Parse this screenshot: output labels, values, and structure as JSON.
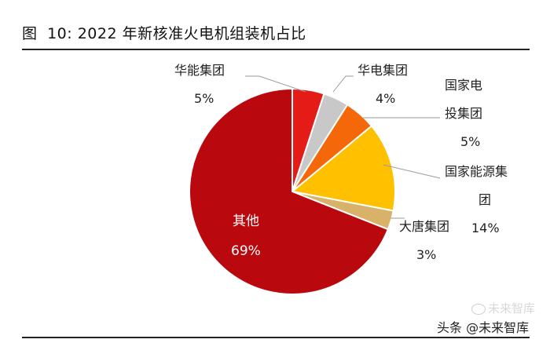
{
  "figure": {
    "title_prefix": "图",
    "title_number": "10:",
    "title_text": "2022 年新核准火电机组装机占比"
  },
  "chart_data": {
    "type": "pie",
    "title": "2022 年新核准火电机组装机占比",
    "slices": [
      {
        "name": "华能集团",
        "value": 5,
        "label": "5%",
        "color": "#e41b17"
      },
      {
        "name": "华电集团",
        "value": 4,
        "label": "4%",
        "color": "#c8c8c8"
      },
      {
        "name": "国家电投集团",
        "value": 5,
        "label": "5%",
        "color": "#f5680a"
      },
      {
        "name": "国家能源集团",
        "value": 14,
        "label": "14%",
        "color": "#ffc000"
      },
      {
        "name": "大唐集团",
        "value": 3,
        "label": "3%",
        "color": "#d9b26a"
      },
      {
        "name": "其他",
        "value": 69,
        "label": "69%",
        "color": "#b9090f"
      }
    ],
    "start_angle_deg": 0,
    "direction": "clockwise"
  },
  "labels": {
    "huaneng_name": "华能集团",
    "huaneng_pct": "5%",
    "huadian_name": "华电集团",
    "huadian_pct": "4%",
    "spic_name_1": "国家电",
    "spic_name_2": "投集团",
    "spic_pct": "5%",
    "chn_energy_name_1": "国家能源集",
    "chn_energy_name_2": "团",
    "chn_energy_pct": "14%",
    "datang_name": "大唐集团",
    "datang_pct": "3%",
    "other_name": "其他",
    "other_pct": "69%"
  },
  "watermark": {
    "logo_text": "未来智库",
    "source_text": "头条 @未来智库"
  }
}
